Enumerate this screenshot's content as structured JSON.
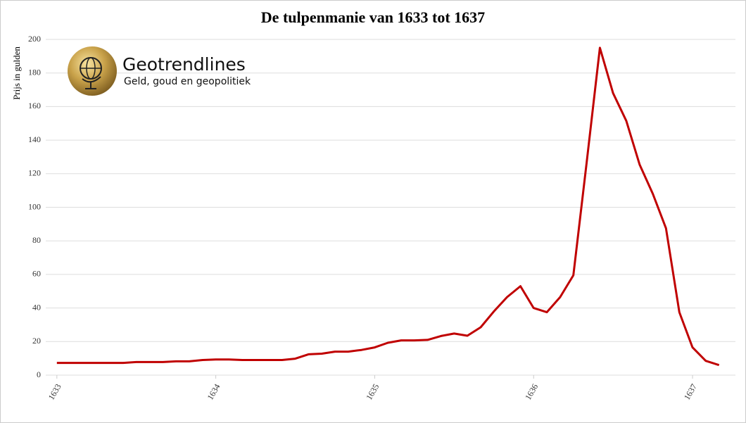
{
  "chart_data": {
    "type": "line",
    "title": "De tulpenmanie van 1633 tot 1637",
    "y_label": "Prijs in gulden",
    "logo_title": "Geotrendlines",
    "logo_subtitle": "Geld, goud en geopolitiek",
    "x": [
      1633,
      1633.083,
      1633.167,
      1633.25,
      1633.333,
      1633.417,
      1633.5,
      1633.583,
      1633.667,
      1633.75,
      1633.833,
      1633.917,
      1634,
      1634.083,
      1634.167,
      1634.25,
      1634.333,
      1634.417,
      1634.5,
      1634.583,
      1634.667,
      1634.75,
      1634.833,
      1634.917,
      1635,
      1635.083,
      1635.167,
      1635.25,
      1635.333,
      1635.417,
      1635.5,
      1635.583,
      1635.667,
      1635.75,
      1635.833,
      1635.917,
      1636,
      1636.083,
      1636.167,
      1636.25,
      1636.333,
      1636.417,
      1636.5,
      1636.583,
      1636.667,
      1636.75,
      1636.833,
      1636.917,
      1637,
      1637.083,
      1637.167
    ],
    "series": [
      {
        "name": "Prijs",
        "color": "#c00000",
        "values": [
          7.3,
          7.3,
          7.3,
          7.3,
          7.3,
          7.3,
          7.8,
          7.8,
          7.8,
          8.2,
          8.2,
          9,
          9.3,
          9.3,
          9,
          9,
          9,
          9,
          9.8,
          12.4,
          12.8,
          14,
          14,
          15,
          16.5,
          19.3,
          20.7,
          20.7,
          21,
          23.3,
          24.8,
          23.5,
          28.5,
          38,
          46.5,
          53,
          40,
          37.5,
          46.5,
          59.5,
          126,
          195,
          168,
          151.5,
          125.5,
          108,
          87.5,
          37.5,
          16.5,
          8.5,
          6
        ]
      }
    ],
    "xlim": [
      1632.93,
      1637.27
    ],
    "xticks": [
      1633,
      1634,
      1635,
      1636,
      1637
    ],
    "ylim": [
      0,
      200
    ],
    "yticks": [
      0,
      20,
      40,
      60,
      80,
      100,
      120,
      140,
      160,
      180,
      200
    ],
    "grid": true
  }
}
